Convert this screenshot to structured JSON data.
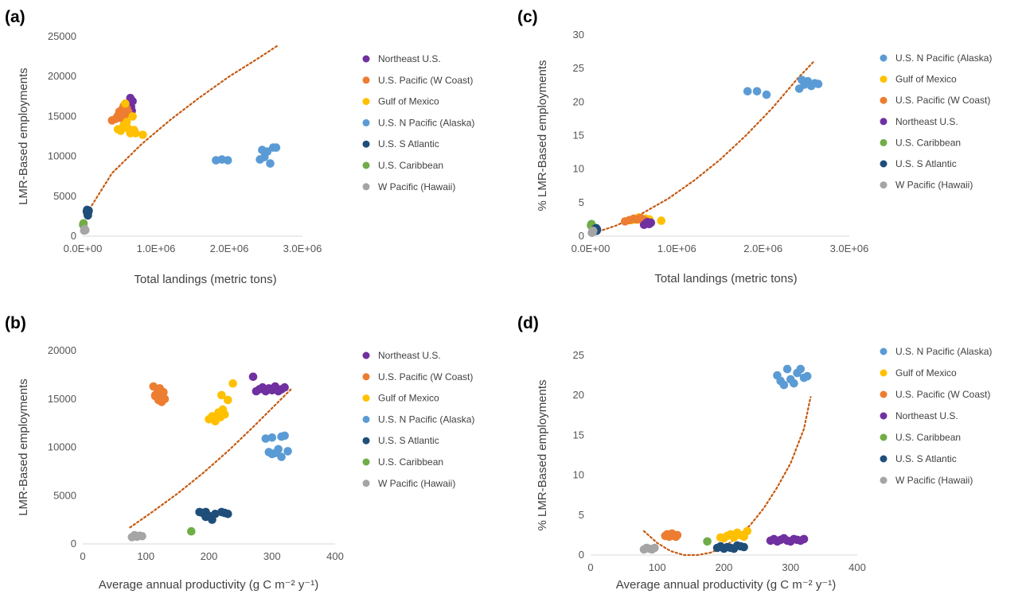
{
  "chart_data": [
    {
      "type": "scatter",
      "panel_label": "(a)",
      "xlabel": "Total landings (metric tons)",
      "ylabel": "LMR-Based employments",
      "xlim": [
        0,
        3000000
      ],
      "ylim": [
        0,
        25000
      ],
      "xticks": [
        0,
        1000000,
        2000000,
        3000000
      ],
      "xtick_labels": [
        "0.0E+00",
        "1.0E+06",
        "2.0E+06",
        "3.0E+06"
      ],
      "yticks": [
        0,
        5000,
        10000,
        15000,
        20000,
        25000
      ],
      "ytick_labels": [
        "0",
        "5000",
        "10000",
        "15000",
        "20000",
        "25000"
      ],
      "grid": false,
      "legend_position": "right",
      "trendline": {
        "x": [
          30000,
          400000,
          800000,
          1200000,
          1600000,
          2000000,
          2400000,
          2650000
        ],
        "y": [
          2500,
          7900,
          11500,
          14600,
          17400,
          20000,
          22300,
          23800
        ]
      },
      "series": [
        {
          "name": "Northeast U.S.",
          "color": "#7030a0",
          "x": [
            640000,
            650000,
            660000,
            670000,
            680000
          ],
          "y": [
            16400,
            17300,
            16200,
            15700,
            16900
          ]
        },
        {
          "name": "U.S. Pacific (W Coast)",
          "color": "#ed7d31",
          "x": [
            400000,
            450000,
            480000,
            500000,
            520000,
            540000,
            560000,
            580000,
            600000,
            620000
          ],
          "y": [
            14500,
            14700,
            15100,
            15600,
            14800,
            15900,
            16300,
            15200,
            16000,
            15600
          ]
        },
        {
          "name": "Gulf of Mexico",
          "color": "#ffc000",
          "x": [
            480000,
            520000,
            560000,
            600000,
            620000,
            650000,
            680000,
            700000,
            720000,
            580000,
            820000
          ],
          "y": [
            13400,
            13200,
            13900,
            14300,
            13500,
            12900,
            15000,
            13300,
            12900,
            16600,
            12700
          ]
        },
        {
          "name": "U.S. N Pacific (Alaska)",
          "color": "#5b9bd5",
          "x": [
            1820000,
            1900000,
            1980000,
            2420000,
            2450000,
            2480000,
            2520000,
            2560000,
            2600000,
            2640000
          ],
          "y": [
            9500,
            9600,
            9500,
            9600,
            10800,
            9900,
            10600,
            9100,
            11100,
            11100
          ]
        },
        {
          "name": "U.S. S Atlantic",
          "color": "#1f4e79",
          "x": [
            55000,
            60000,
            65000,
            70000,
            75000,
            80000
          ],
          "y": [
            3100,
            3300,
            2800,
            2600,
            3000,
            3200
          ]
        },
        {
          "name": "U.S. Caribbean",
          "color": "#70ad47",
          "x": [
            5000,
            10000
          ],
          "y": [
            1400,
            1600
          ]
        },
        {
          "name": "W Pacific (Hawaii)",
          "color": "#a5a5a5",
          "x": [
            20000,
            25000,
            30000,
            35000
          ],
          "y": [
            700,
            900,
            800,
            750
          ]
        }
      ]
    },
    {
      "type": "scatter",
      "panel_label": "(c)",
      "xlabel": "Total landings (metric tons)",
      "ylabel": "% LMR-Based employments",
      "xlim": [
        0,
        3000000
      ],
      "ylim": [
        0,
        30
      ],
      "xticks": [
        0,
        1000000,
        2000000,
        3000000
      ],
      "xtick_labels": [
        "0.0E+00",
        "1.0E+06",
        "2.0E+06",
        "3.0E+06"
      ],
      "yticks": [
        0,
        5,
        10,
        15,
        20,
        25,
        30
      ],
      "ytick_labels": [
        "0",
        "5",
        "10",
        "15",
        "20",
        "25",
        "30"
      ],
      "grid": false,
      "legend_position": "right",
      "trendline": {
        "x": [
          0,
          300000,
          600000,
          900000,
          1200000,
          1500000,
          1800000,
          2100000,
          2400000,
          2600000
        ],
        "y": [
          0.3,
          1.6,
          3.4,
          5.6,
          8.3,
          11.4,
          15.0,
          19.0,
          23.5,
          26.2
        ]
      },
      "series": [
        {
          "name": "U.S. N Pacific (Alaska)",
          "color": "#5b9bd5",
          "x": [
            1820000,
            1930000,
            2040000,
            2420000,
            2450000,
            2480000,
            2520000,
            2560000,
            2600000,
            2640000
          ],
          "y": [
            21.6,
            21.6,
            21.1,
            22.0,
            23.3,
            22.6,
            23.1,
            22.4,
            22.8,
            22.7
          ]
        },
        {
          "name": "Gulf of Mexico",
          "color": "#ffc000",
          "x": [
            480000,
            520000,
            560000,
            600000,
            640000,
            680000,
            820000
          ],
          "y": [
            2.4,
            2.5,
            2.8,
            2.3,
            2.6,
            2.5,
            2.3
          ]
        },
        {
          "name": "U.S. Pacific (W Coast)",
          "color": "#ed7d31",
          "x": [
            400000,
            450000,
            500000,
            540000,
            580000,
            620000
          ],
          "y": [
            2.2,
            2.4,
            2.6,
            2.5,
            2.7,
            2.4
          ]
        },
        {
          "name": "Northeast U.S.",
          "color": "#7030a0",
          "x": [
            620000,
            640000,
            660000,
            680000,
            700000
          ],
          "y": [
            1.7,
            1.9,
            2.1,
            1.8,
            2.0
          ]
        },
        {
          "name": "U.S. Caribbean",
          "color": "#70ad47",
          "x": [
            5000,
            10000
          ],
          "y": [
            1.6,
            1.8
          ]
        },
        {
          "name": "U.S. S Atlantic",
          "color": "#1f4e79",
          "x": [
            50000,
            55000,
            60000,
            65000,
            70000,
            75000
          ],
          "y": [
            0.9,
            1.1,
            1.0,
            1.2,
            0.8,
            1.0
          ]
        },
        {
          "name": "W Pacific (Hawaii)",
          "color": "#a5a5a5",
          "x": [
            15000,
            20000,
            25000,
            30000
          ],
          "y": [
            0.5,
            0.7,
            0.6,
            0.8
          ]
        }
      ]
    },
    {
      "type": "scatter",
      "panel_label": "(b)",
      "xlabel": "Average annual productivity (g C m⁻² y⁻¹)",
      "ylabel": "LMR-Based employments",
      "xlim": [
        0,
        400
      ],
      "ylim": [
        0,
        20000
      ],
      "xticks": [
        0,
        100,
        200,
        300,
        400
      ],
      "xtick_labels": [
        "0",
        "100",
        "200",
        "300",
        "400"
      ],
      "yticks": [
        0,
        5000,
        10000,
        15000,
        20000
      ],
      "ytick_labels": [
        "0",
        "5000",
        "10000",
        "15000",
        "20000"
      ],
      "grid": false,
      "legend_position": "right",
      "trendline": {
        "x": [
          75,
          110,
          150,
          190,
          230,
          270,
          310,
          330
        ],
        "y": [
          1700,
          3300,
          5200,
          7300,
          9600,
          12100,
          14700,
          16000
        ]
      },
      "series": [
        {
          "name": "Northeast U.S.",
          "color": "#7030a0",
          "x": [
            270,
            275,
            280,
            285,
            290,
            295,
            300,
            305,
            310,
            315,
            320
          ],
          "y": [
            17300,
            15800,
            16000,
            16200,
            15800,
            16100,
            15900,
            16300,
            15800,
            16000,
            16200
          ]
        },
        {
          "name": "U.S. Pacific (W Coast)",
          "color": "#ed7d31",
          "x": [
            112,
            115,
            118,
            120,
            122,
            125,
            128,
            130,
            115,
            125
          ],
          "y": [
            16300,
            15300,
            15600,
            14900,
            16100,
            15300,
            15700,
            15000,
            15400,
            14700
          ]
        },
        {
          "name": "Gulf of Mexico",
          "color": "#ffc000",
          "x": [
            200,
            205,
            210,
            215,
            218,
            222,
            225,
            230,
            238,
            220
          ],
          "y": [
            12900,
            13200,
            12700,
            13600,
            13100,
            13900,
            13400,
            14900,
            16600,
            15400
          ]
        },
        {
          "name": "U.S. N Pacific (Alaska)",
          "color": "#5b9bd5",
          "x": [
            290,
            295,
            300,
            305,
            310,
            315,
            320,
            325,
            300,
            315
          ],
          "y": [
            10900,
            9500,
            11000,
            9400,
            9800,
            9000,
            11200,
            9600,
            9300,
            11100
          ]
        },
        {
          "name": "U.S. S Atlantic",
          "color": "#1f4e79",
          "x": [
            185,
            190,
            195,
            200,
            205,
            210,
            220,
            225,
            230,
            195
          ],
          "y": [
            3300,
            3200,
            3300,
            2900,
            2500,
            3100,
            3300,
            3200,
            3100,
            2800
          ]
        },
        {
          "name": "U.S. Caribbean",
          "color": "#70ad47",
          "x": [
            172
          ],
          "y": [
            1300
          ]
        },
        {
          "name": "W Pacific (Hawaii)",
          "color": "#a5a5a5",
          "x": [
            78,
            82,
            86,
            90,
            94
          ],
          "y": [
            700,
            900,
            750,
            850,
            800
          ]
        }
      ]
    },
    {
      "type": "scatter",
      "panel_label": "(d)",
      "xlabel": "Average annual productivity (g C m⁻² y⁻¹)",
      "ylabel": "% LMR-Based employments",
      "xlim": [
        0,
        400
      ],
      "ylim": [
        0,
        25
      ],
      "xticks": [
        0,
        100,
        200,
        300,
        400
      ],
      "xtick_labels": [
        "0",
        "100",
        "200",
        "300",
        "400"
      ],
      "yticks": [
        0,
        5,
        10,
        15,
        20,
        25
      ],
      "ytick_labels": [
        "0",
        "5",
        "10",
        "15",
        "20",
        "25"
      ],
      "grid": false,
      "legend_position": "right",
      "trendline": {
        "x": [
          80,
          100,
          120,
          140,
          160,
          180,
          200,
          220,
          240,
          260,
          280,
          300,
          320,
          330
        ],
        "y": [
          3.0,
          1.5,
          0.5,
          0.0,
          0.0,
          0.3,
          1.0,
          2.2,
          3.8,
          5.9,
          8.5,
          11.5,
          15.8,
          19.8
        ]
      },
      "series": [
        {
          "name": "U.S. N Pacific (Alaska)",
          "color": "#5b9bd5",
          "x": [
            280,
            285,
            290,
            295,
            300,
            305,
            310,
            315,
            320,
            325
          ],
          "y": [
            22.5,
            21.8,
            21.3,
            23.3,
            22.0,
            21.5,
            22.8,
            23.3,
            22.2,
            22.4
          ]
        },
        {
          "name": "Gulf of Mexico",
          "color": "#ffc000",
          "x": [
            195,
            200,
            205,
            210,
            215,
            220,
            225,
            230,
            235
          ],
          "y": [
            2.2,
            2.1,
            2.4,
            2.6,
            2.2,
            2.8,
            2.5,
            2.3,
            3.0
          ]
        },
        {
          "name": "U.S. Pacific (W Coast)",
          "color": "#ed7d31",
          "x": [
            112,
            115,
            118,
            120,
            122,
            125,
            128,
            130
          ],
          "y": [
            2.4,
            2.6,
            2.3,
            2.5,
            2.7,
            2.4,
            2.3,
            2.5
          ]
        },
        {
          "name": "Northeast U.S.",
          "color": "#7030a0",
          "x": [
            270,
            275,
            280,
            285,
            290,
            295,
            300,
            305,
            310,
            315,
            320
          ],
          "y": [
            1.8,
            2.0,
            1.7,
            1.9,
            2.1,
            1.8,
            1.7,
            2.0,
            1.9,
            1.8,
            2.0
          ]
        },
        {
          "name": "U.S. Caribbean",
          "color": "#70ad47",
          "x": [
            175
          ],
          "y": [
            1.7
          ]
        },
        {
          "name": "U.S. S Atlantic",
          "color": "#1f4e79",
          "x": [
            190,
            195,
            200,
            205,
            210,
            215,
            220,
            225,
            230
          ],
          "y": [
            0.9,
            1.1,
            0.8,
            1.0,
            0.9,
            0.8,
            1.2,
            1.1,
            1.0
          ]
        },
        {
          "name": "W Pacific (Hawaii)",
          "color": "#a5a5a5",
          "x": [
            80,
            84,
            88,
            92,
            96
          ],
          "y": [
            0.7,
            0.9,
            0.8,
            0.7,
            0.9
          ]
        }
      ]
    }
  ]
}
